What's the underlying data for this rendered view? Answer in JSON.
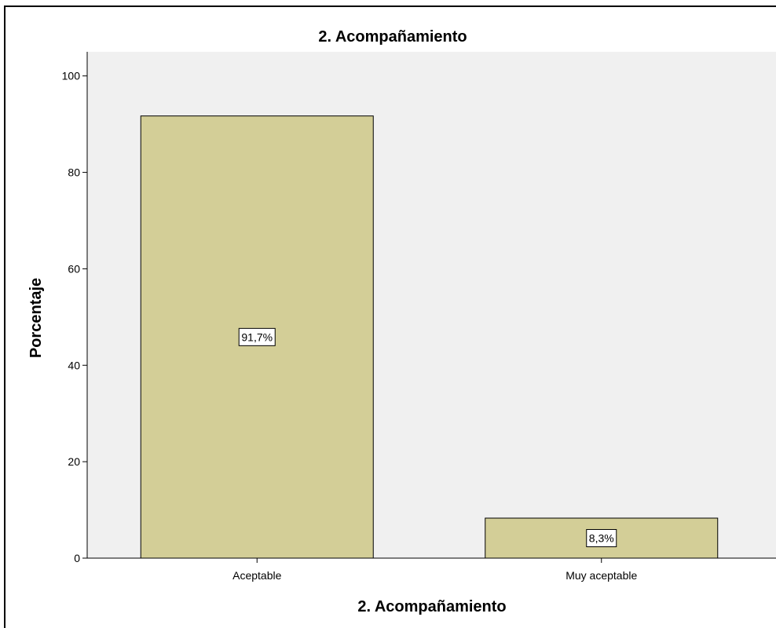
{
  "chart_data": {
    "type": "bar",
    "title": "2. Acompañamiento",
    "xlabel": "2. Acompañamiento",
    "ylabel": "Porcentaje",
    "categories": [
      "Aceptable",
      "Muy aceptable"
    ],
    "values": [
      91.7,
      8.3
    ],
    "data_labels": [
      "91,7%",
      "8,3%"
    ],
    "ylim": [
      0,
      105
    ],
    "yticks": [
      0,
      20,
      40,
      60,
      80,
      100
    ],
    "grid": false,
    "colors": {
      "plot_background": "#f0f0f0",
      "bar_fill": "#d3ce97",
      "bar_stroke": "#000000"
    }
  }
}
